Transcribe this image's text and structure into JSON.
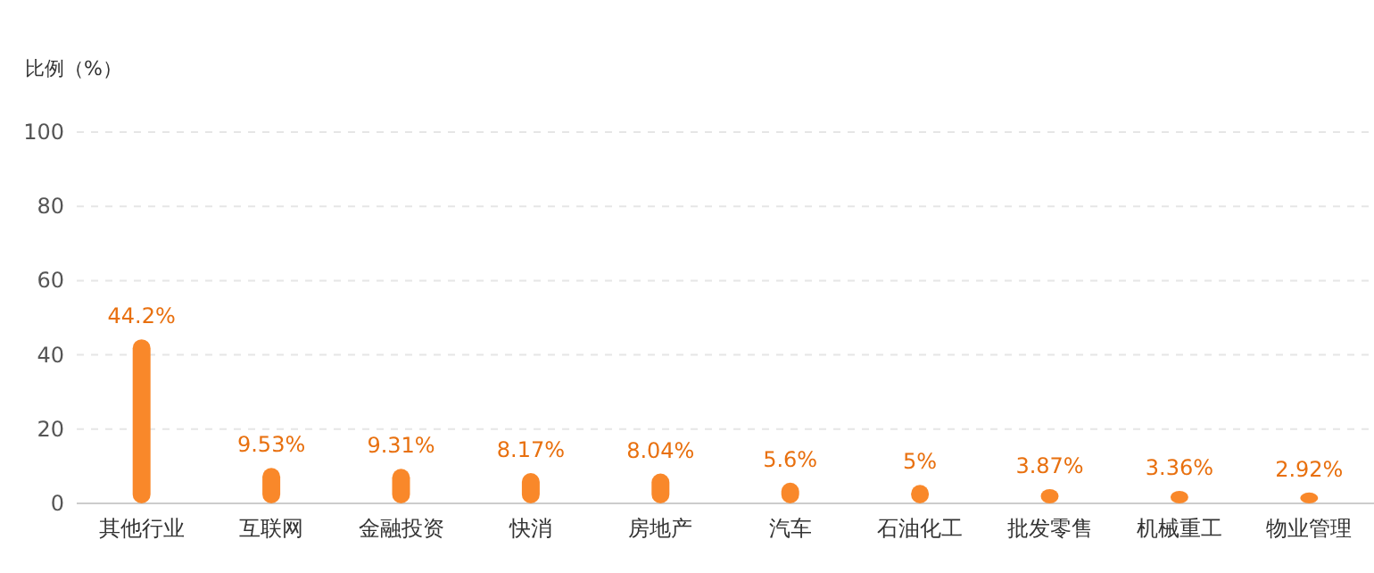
{
  "chart_data": {
    "type": "bar",
    "ylabel": "比例（%）",
    "categories": [
      "其他行业",
      "互联网",
      "金融投资",
      "快消",
      "房地产",
      "汽车",
      "石油化工",
      "批发零售",
      "机械重工",
      "物业管理"
    ],
    "values": [
      44.2,
      9.53,
      9.31,
      8.17,
      8.04,
      5.6,
      5,
      3.87,
      3.36,
      2.92
    ],
    "value_labels": [
      "44.2%",
      "9.53%",
      "9.31%",
      "8.17%",
      "8.04%",
      "5.6%",
      "5%",
      "3.87%",
      "3.36%",
      "2.92%"
    ],
    "color": "#f9882a",
    "ylim": [
      0,
      100
    ],
    "yticks": [
      0,
      20,
      40,
      60,
      80,
      100
    ],
    "grid": "y"
  }
}
